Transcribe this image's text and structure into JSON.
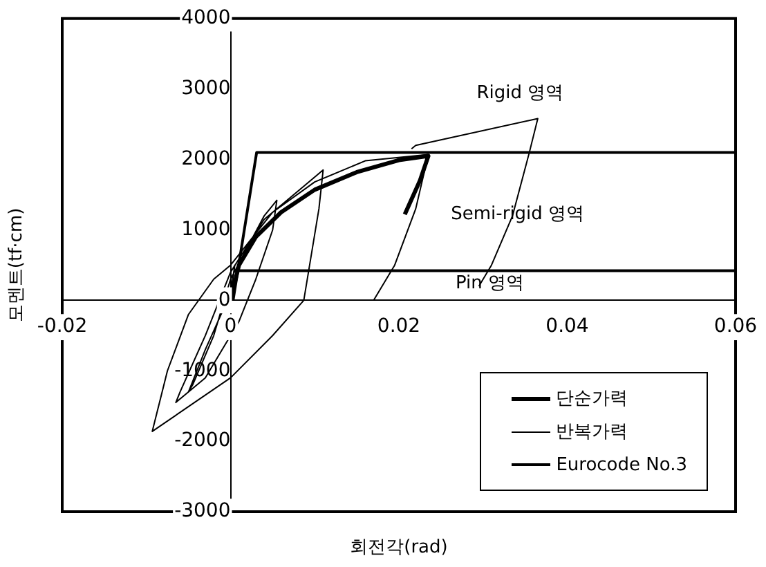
{
  "chart_data": {
    "type": "line",
    "xlabel": "회전각(rad)",
    "ylabel": "모멘트(tf·cm)",
    "xlim": [
      -0.02,
      0.06
    ],
    "xticks": [
      -0.02,
      0,
      0.02,
      0.04,
      0.06
    ],
    "ylim": [
      -3000,
      4000
    ],
    "yticks": [
      -3000,
      -2000,
      -1000,
      0,
      1000,
      2000,
      3000,
      4000
    ],
    "grid": false,
    "legend": "bottom right",
    "marker": "none",
    "series": [
      {
        "name": "단순가력",
        "color": "#000000",
        "x": [
          0,
          0.001,
          0.003,
          0.006,
          0.01,
          0.015,
          0.02,
          0.0235,
          0.0225,
          0.0207
        ],
        "values": [
          0,
          500,
          900,
          1250,
          1570,
          1820,
          1990,
          2050,
          1700,
          1220
        ]
      },
      {
        "name": "반복가력",
        "color": "#000000",
        "x": [
          0,
          0.0005,
          0,
          -0.003,
          -0.005,
          -0.0045,
          -0.002,
          0,
          0.004,
          0.0055,
          0.005,
          0.003,
          0.001,
          -0.003,
          -0.0065,
          -0.006,
          -0.003,
          0,
          0.004,
          0.008,
          0.011,
          0.0105,
          0.0087,
          0.005,
          0,
          -0.0093,
          -0.0075,
          -0.005,
          -0.002,
          0,
          0.005,
          0.01,
          0.016,
          0.0235,
          0.022,
          0.0195,
          0.017
        ],
        "values": [
          0,
          500,
          100,
          -700,
          -1300,
          -1200,
          -500,
          300,
          1200,
          1420,
          1000,
          300,
          -300,
          -1100,
          -1450,
          -1300,
          -500,
          400,
          1150,
          1550,
          1850,
          1300,
          0,
          -500,
          -1100,
          -1860,
          -1000,
          -200,
          300,
          500,
          1250,
          1680,
          1980,
          2070,
          1300,
          500,
          0
        ]
      },
      {
        "color": "#000000",
        "x": [
          0.0215,
          0.022,
          0.0365,
          0.0355,
          0.0335,
          0.031,
          0.0295
        ],
        "values": [
          2150,
          2200,
          2580,
          2100,
          1200,
          500,
          200
        ]
      },
      {
        "name": "Eurocode No.3",
        "color": "#000000",
        "x": [
          0.0003,
          0.0031,
          0.06
        ],
        "values": [
          0,
          2100,
          2100
        ]
      },
      {
        "color": "#000000",
        "x": [
          0.0005,
          0.06
        ],
        "values": [
          420,
          420
        ]
      }
    ],
    "annotations": [
      "Rigid 영역",
      "Semi-rigid 영역",
      "Pin 영역"
    ]
  }
}
